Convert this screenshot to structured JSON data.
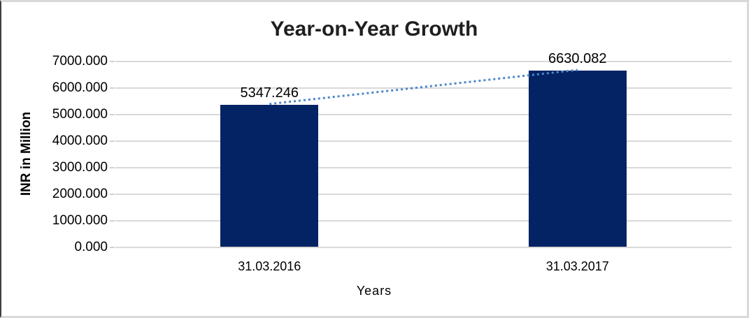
{
  "chart_data": {
    "type": "bar",
    "title": "Year-on-Year Growth",
    "xlabel": "Years",
    "ylabel": "INR in Million",
    "categories": [
      "31.03.2016",
      "31.03.2017"
    ],
    "series": [
      {
        "name": "INR in Million",
        "values": [
          5347.246,
          6630.082
        ],
        "data_labels": [
          "5347.246",
          "6630.082"
        ]
      }
    ],
    "ylim": [
      0,
      7000
    ],
    "ytick_step": 1000,
    "ytick_labels_top_to_bottom": [
      "7000.000",
      "6000.000",
      "5000.000",
      "4000.000",
      "3000.000",
      "2000.000",
      "1000.000",
      "0.000"
    ],
    "grid": true,
    "legend": "none",
    "trendline": {
      "type": "linear-dotted",
      "connects": "bar tops",
      "color": "#4e86c8"
    },
    "colors": {
      "bar": "#032364",
      "gridline": "#d9d9d9",
      "title_text": "#1f1f1f",
      "label_text": "#000000",
      "frame_border_left": "#404040",
      "frame_border_other": "#d9d9d9"
    }
  }
}
